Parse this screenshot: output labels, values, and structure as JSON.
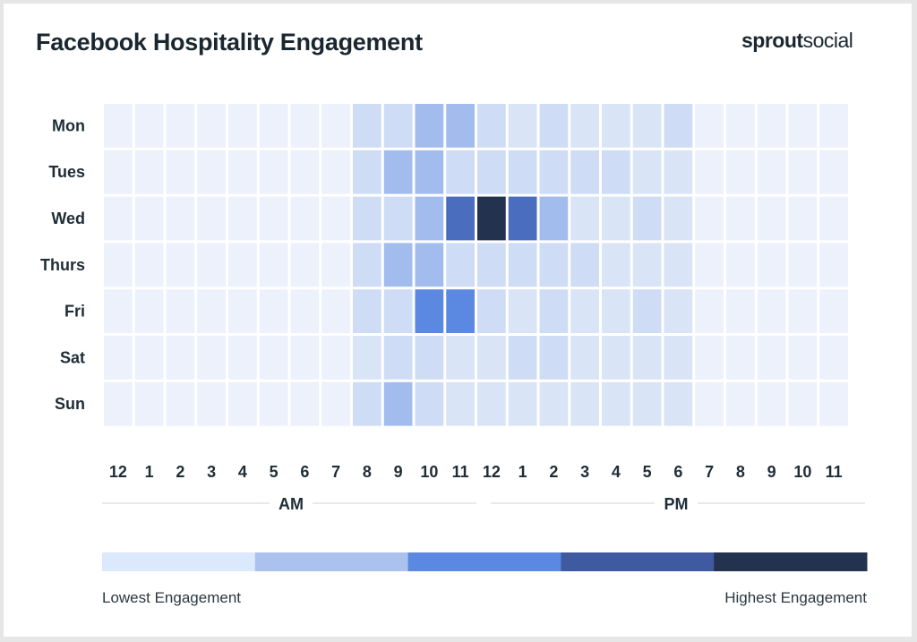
{
  "header": {
    "title": "Facebook Hospitality Engagement",
    "brand_bold": "sprout",
    "brand_light": "social"
  },
  "chart_data": {
    "type": "heatmap",
    "title": "Facebook Hospitality Engagement",
    "rows": [
      "Mon",
      "Tues",
      "Wed",
      "Thurs",
      "Fri",
      "Sat",
      "Sun"
    ],
    "columns": [
      "12",
      "1",
      "2",
      "3",
      "4",
      "5",
      "6",
      "7",
      "8",
      "9",
      "10",
      "11",
      "12",
      "1",
      "2",
      "3",
      "4",
      "5",
      "6",
      "7",
      "8",
      "9",
      "10",
      "11"
    ],
    "periods": [
      {
        "label": "AM",
        "from_column": 0,
        "to_column": 11
      },
      {
        "label": "PM",
        "from_column": 12,
        "to_column": 23
      }
    ],
    "scale": {
      "min": 0,
      "max": 6,
      "colors": [
        "#ecf1fb",
        "#dae4f7",
        "#cfdcf5",
        "#a3bcee",
        "#5b88e0",
        "#4a6ebd",
        "#22324f"
      ]
    },
    "values": [
      [
        0,
        0,
        0,
        0,
        0,
        0,
        0,
        0,
        2,
        2,
        3,
        3,
        2,
        1,
        2,
        1,
        1,
        1,
        2,
        0,
        0,
        0,
        0,
        0
      ],
      [
        0,
        0,
        0,
        0,
        0,
        0,
        0,
        0,
        2,
        3,
        3,
        2,
        2,
        2,
        2,
        2,
        2,
        1,
        1,
        0,
        0,
        0,
        0,
        0
      ],
      [
        0,
        0,
        0,
        0,
        0,
        0,
        0,
        0,
        2,
        2,
        3,
        5,
        6,
        5,
        3,
        1,
        1,
        2,
        1,
        0,
        0,
        0,
        0,
        0
      ],
      [
        0,
        0,
        0,
        0,
        0,
        0,
        0,
        0,
        2,
        3,
        3,
        2,
        2,
        2,
        2,
        2,
        1,
        1,
        1,
        0,
        0,
        0,
        0,
        0
      ],
      [
        0,
        0,
        0,
        0,
        0,
        0,
        0,
        0,
        2,
        2,
        4,
        4,
        2,
        1,
        2,
        1,
        1,
        2,
        1,
        0,
        0,
        0,
        0,
        0
      ],
      [
        0,
        0,
        0,
        0,
        0,
        0,
        0,
        0,
        1,
        2,
        2,
        1,
        1,
        2,
        2,
        1,
        1,
        1,
        1,
        0,
        0,
        0,
        0,
        0
      ],
      [
        0,
        0,
        0,
        0,
        0,
        0,
        0,
        0,
        2,
        3,
        2,
        1,
        1,
        1,
        1,
        1,
        1,
        1,
        1,
        0,
        0,
        0,
        0,
        0
      ]
    ],
    "legend": {
      "colors": [
        "#dce8fb",
        "#abc2ee",
        "#5b88e0",
        "#3f5aa0",
        "#22324f"
      ],
      "low_label": "Lowest Engagement",
      "high_label": "Highest Engagement"
    }
  }
}
